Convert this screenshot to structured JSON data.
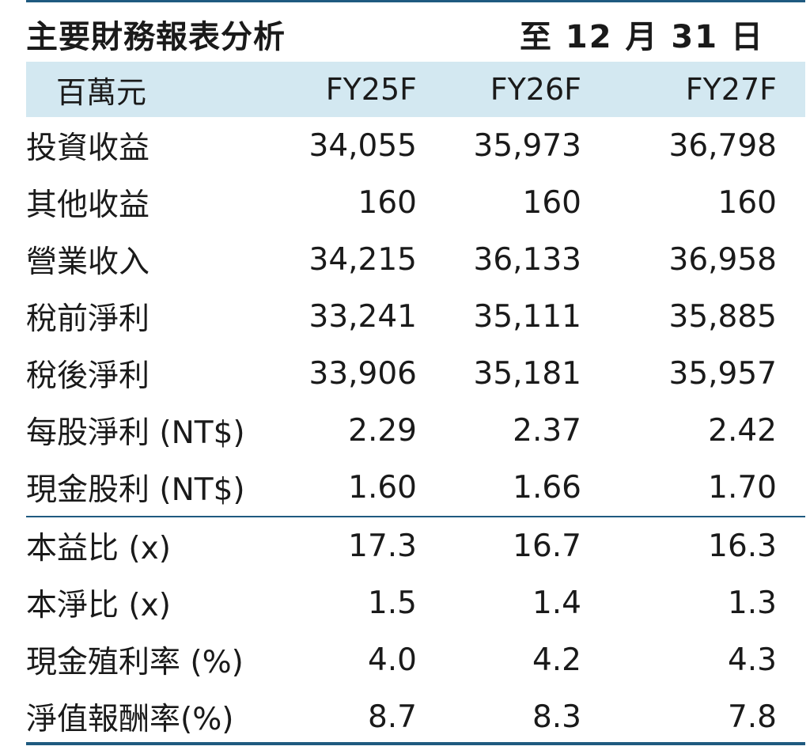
{
  "title": "主要財務報表分析",
  "period": "至 12 月 31 日",
  "header": {
    "unit": "百萬元",
    "columns": [
      "FY25F",
      "FY26F",
      "FY27F"
    ]
  },
  "rows": [
    {
      "label": "投資收益",
      "values": [
        "34,055",
        "35,973",
        "36,798"
      ]
    },
    {
      "label": "其他收益",
      "values": [
        "160",
        "160",
        "160"
      ]
    },
    {
      "label": "營業收入",
      "values": [
        "34,215",
        "36,133",
        "36,958"
      ]
    },
    {
      "label": "稅前淨利",
      "values": [
        "33,241",
        "35,111",
        "35,885"
      ]
    },
    {
      "label": "稅後淨利",
      "values": [
        "33,906",
        "35,181",
        "35,957"
      ]
    },
    {
      "label": "每股淨利 (NT$)",
      "values": [
        "2.29",
        "2.37",
        "2.42"
      ]
    },
    {
      "label": "現金股利 (NT$)",
      "values": [
        "1.60",
        "1.66",
        "1.70"
      ]
    },
    {
      "label": "本益比 (x)",
      "values": [
        "17.3",
        "16.7",
        "16.3"
      ]
    },
    {
      "label": "本淨比 (x)",
      "values": [
        "1.5",
        "1.4",
        "1.3"
      ]
    },
    {
      "label": "現金殖利率 (%)",
      "values": [
        "4.0",
        "4.2",
        "4.3"
      ]
    },
    {
      "label": "淨值報酬率(%)",
      "values": [
        "8.7",
        "8.3",
        "7.8"
      ]
    }
  ],
  "colors": {
    "header_bg": "#d3e8f1",
    "rule": "#1f5a80"
  }
}
